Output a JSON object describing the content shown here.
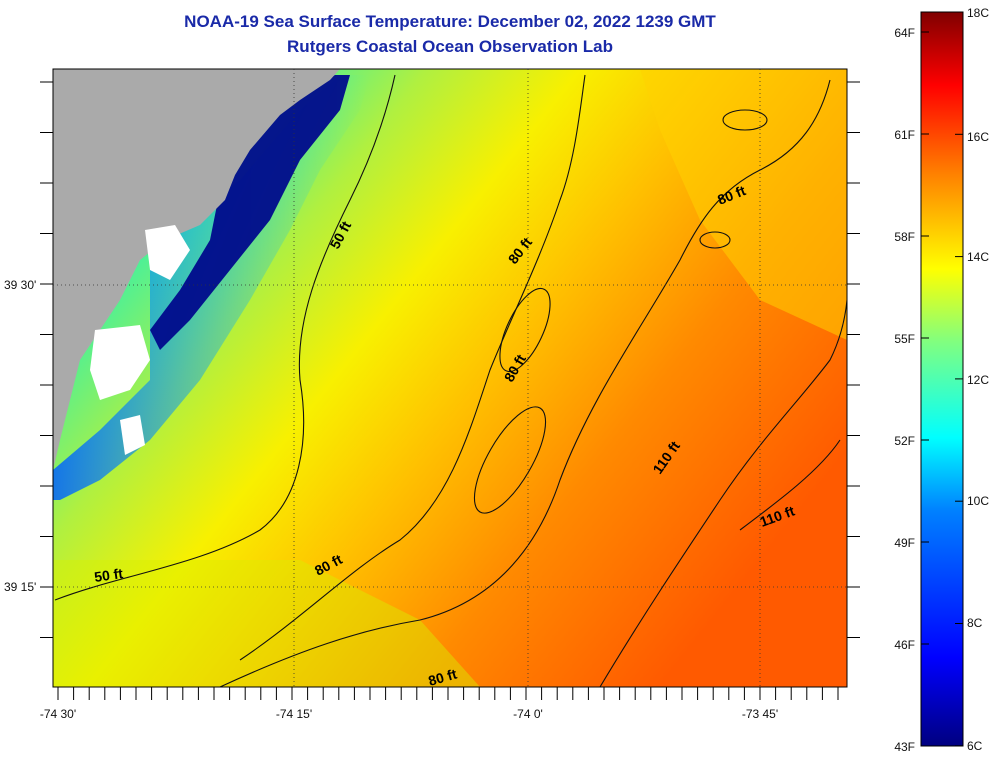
{
  "header": {
    "title": "NOAA-19 Sea Surface Temperature:  December 02, 2022 1239 GMT",
    "subtitle": "Rutgers Coastal Ocean Observation Lab"
  },
  "map": {
    "lon_ticks": [
      "-74 30'",
      "-74 15'",
      "-74 0'",
      "-73 45'"
    ],
    "lat_ticks": [
      "39 30'",
      "39 15'"
    ],
    "contour_labels": [
      "50 ft",
      "50 ft",
      "80 ft",
      "80 ft",
      "80 ft",
      "80 ft",
      "80 ft",
      "110 ft",
      "110 ft"
    ]
  },
  "colorbar": {
    "fahrenheit_labels": [
      "64F",
      "61F",
      "58F",
      "55F",
      "52F",
      "49F",
      "46F",
      "43F"
    ],
    "celsius_labels": [
      "18C",
      "16C",
      "14C",
      "12C",
      "10C",
      "8C",
      "6C"
    ]
  },
  "colors": {
    "land": "#aaaaaa",
    "title": "#1a2aa8",
    "coast_white": "#ffffff"
  }
}
